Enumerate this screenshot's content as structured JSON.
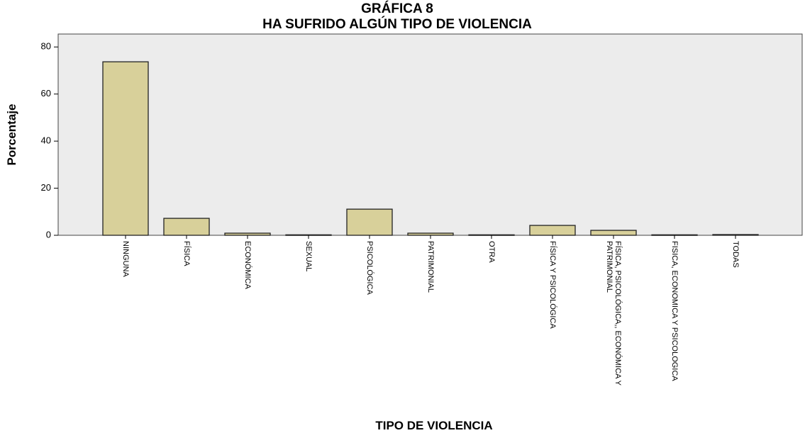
{
  "chart_data": {
    "type": "bar",
    "title": [
      "GRÁFICA 8",
      "HA SUFRIDO ALGÚN TIPO DE VIOLENCIA"
    ],
    "y_label": "Porcentaje",
    "x_label": "TIPO DE VIOLENCIA",
    "categories": [
      "NINGUNA",
      "FÍSICA",
      "ECONÓMICA",
      "SEXUAL",
      "PSICOLÓGICA",
      "PATRIMONIAL",
      "OTRA",
      "FÍSICA Y PSICOLÓGICA",
      "FÍSICA, PSICOLÓGICA,, ECONÓMICA Y\nPATRIMONIAL",
      "FISICA, ECONOMICA Y PSICOLOGICA",
      "TODAS"
    ],
    "values": [
      73.7,
      7.2,
      0.9,
      0.2,
      11.1,
      0.9,
      0.2,
      4.2,
      2.1,
      0.2,
      0.3
    ],
    "color": "#d8d09a",
    "ylim": [
      0,
      85.5
    ],
    "yticks": [
      0,
      20,
      40,
      60,
      80
    ],
    "grid": false
  }
}
